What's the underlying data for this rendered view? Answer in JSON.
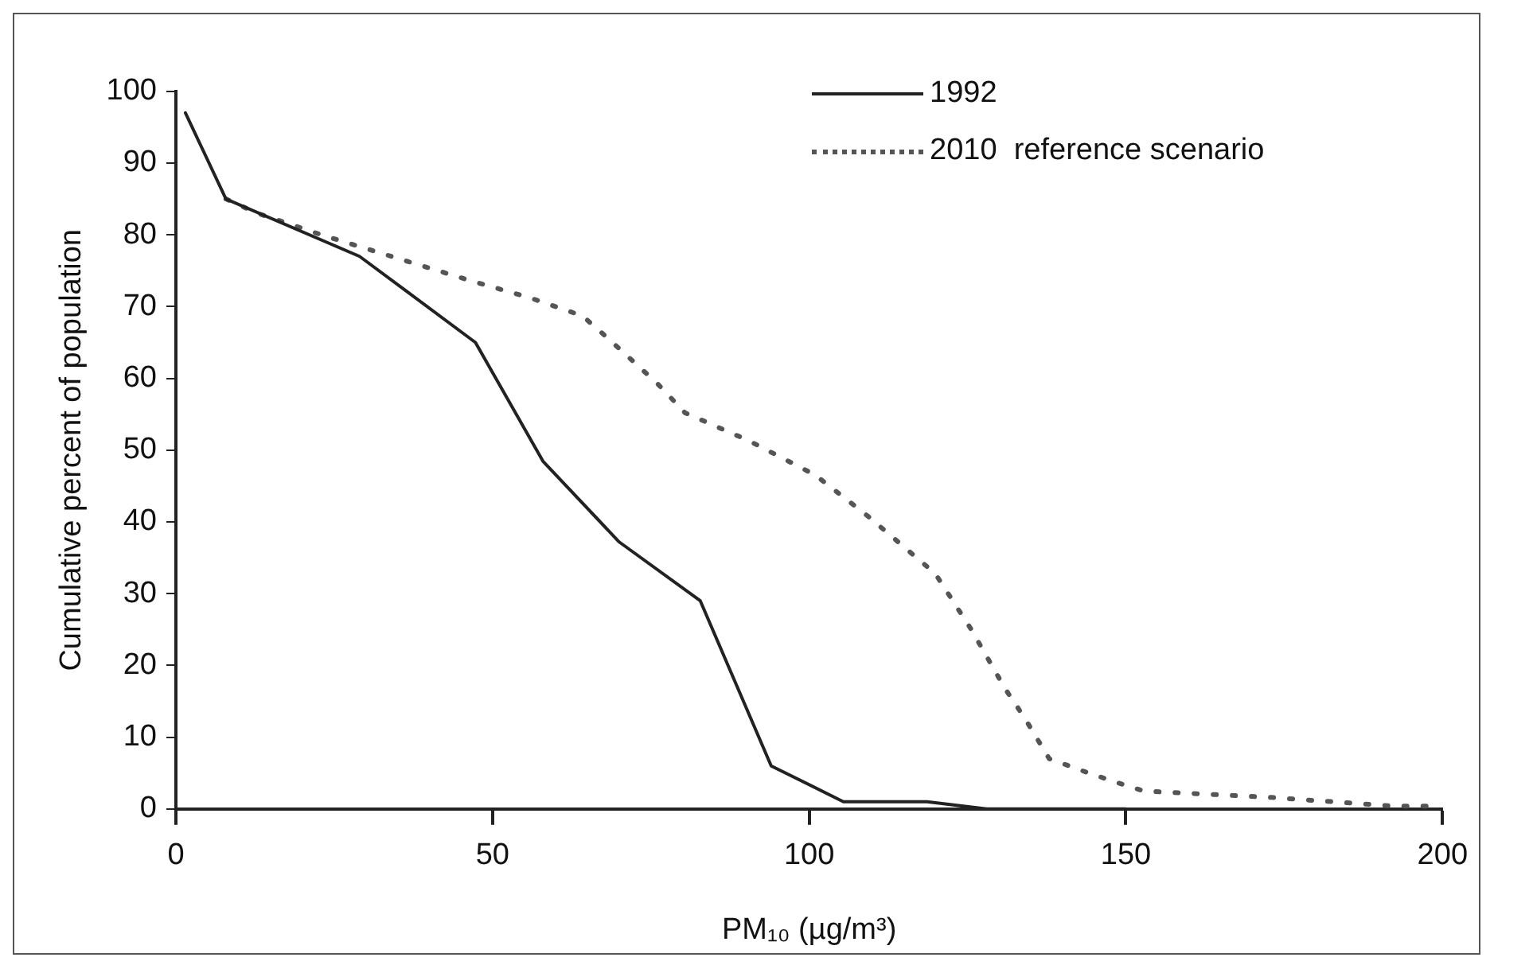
{
  "chart_data": {
    "type": "line",
    "xlabel": "PM₁₀ (µg/m³)",
    "ylabel": "Cumulative percent of population",
    "xlim": [
      0,
      200
    ],
    "xticks": [
      0,
      50,
      100,
      150,
      200
    ],
    "ylim": [
      0,
      100
    ],
    "yticks": [
      0,
      10,
      20,
      30,
      40,
      50,
      60,
      70,
      80,
      90,
      100
    ],
    "grid": false,
    "legend": "top right",
    "marker": "none",
    "series": [
      {
        "name": "1992",
        "color": "#222222",
        "line_style": "solid",
        "x": [
          1.5,
          7.9,
          29,
          47.3,
          58,
          70,
          82.8,
          94,
          105.4,
          118.6,
          128,
          150
        ],
        "values": [
          97,
          85,
          77,
          65,
          48.4,
          37.2,
          29,
          6,
          1,
          1,
          0,
          0
        ]
      },
      {
        "name": "2010  reference scenario",
        "color": "#555555",
        "line_style": "dotted",
        "x": [
          7.9,
          12.9,
          23,
          36.6,
          46.2,
          56,
          64.2,
          68.2,
          76,
          80.4,
          90.5,
          101,
          109.4,
          119.9,
          125.6,
          130.9,
          134,
          137.9,
          143.2,
          148.5,
          152.8,
          173,
          192.3,
          199
        ],
        "values": [
          85,
          83,
          80,
          76.3,
          73.7,
          71.2,
          68.7,
          65.6,
          59.3,
          55.2,
          51.3,
          46.5,
          40.7,
          32.8,
          25,
          16.8,
          12.7,
          7,
          5.3,
          3.7,
          2.5,
          1.6,
          0.4,
          0.4
        ]
      }
    ]
  }
}
